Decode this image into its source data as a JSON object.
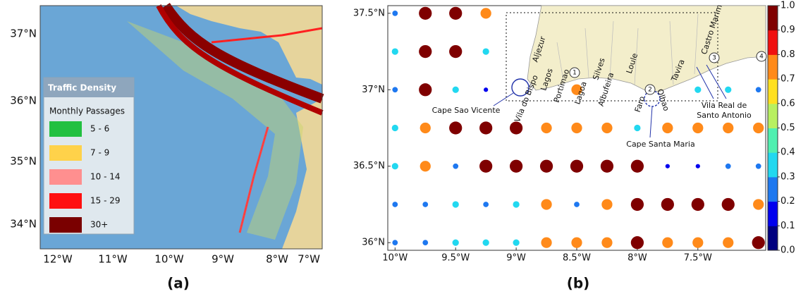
{
  "panel_a": {
    "label": "(a)",
    "yticks": [
      "37°N",
      "36°N",
      "35°N",
      "34°N"
    ],
    "xticks": [
      "12°W",
      "11°W",
      "10°W",
      "9°W",
      "8°W",
      "7°W"
    ],
    "legend": {
      "title": "Traffic Density",
      "subtitle": "Monthly Passages",
      "items": [
        {
          "label": "5 - 6",
          "color": "#22c040"
        },
        {
          "label": "7 - 9",
          "color": "#ffd24a"
        },
        {
          "label": "10 - 14",
          "color": "#ff8f8f"
        },
        {
          "label": "15 - 29",
          "color": "#ff1010"
        },
        {
          "label": "30+",
          "color": "#7a0000"
        }
      ]
    }
  },
  "chart_data": {
    "type": "scatter",
    "label": "(b)",
    "x": [
      -10,
      -9.75,
      -9.5,
      -9.25,
      -9,
      -8.75,
      -8.5,
      -8.25,
      -8,
      -7.75,
      -7.5,
      -7.25,
      -7
    ],
    "y": [
      37.5,
      37.25,
      37,
      36.75,
      36.5,
      36.25,
      36
    ],
    "values": [
      [
        0.25,
        0.95,
        0.95,
        0.75,
        null,
        null,
        null,
        null,
        null,
        null,
        null,
        null,
        null
      ],
      [
        0.35,
        0.95,
        0.95,
        0.35,
        null,
        null,
        null,
        null,
        null,
        null,
        null,
        null,
        null
      ],
      [
        0.25,
        0.95,
        0.35,
        0.15,
        null,
        null,
        0.75,
        null,
        null,
        null,
        0.35,
        0.35,
        0.25
      ],
      [
        0.35,
        0.75,
        0.95,
        0.95,
        0.95,
        0.75,
        0.75,
        0.75,
        0.35,
        0.75,
        0.75,
        0.75,
        0.75
      ],
      [
        0.35,
        0.75,
        0.25,
        0.95,
        0.95,
        0.95,
        0.95,
        0.95,
        0.95,
        0.15,
        0.15,
        0.25,
        0.25
      ],
      [
        0.25,
        0.25,
        0.35,
        0.25,
        0.35,
        0.75,
        0.25,
        0.75,
        0.95,
        0.95,
        0.95,
        0.95,
        0.75
      ],
      [
        0.25,
        0.25,
        0.35,
        0.35,
        0.35,
        0.75,
        0.75,
        0.75,
        0.95,
        0.75,
        0.75,
        0.75,
        0.95
      ]
    ],
    "xlim": [
      -10.06,
      -6.94
    ],
    "ylim": [
      35.95,
      37.55
    ],
    "xticks": [
      {
        "value": -10,
        "label": "10°W"
      },
      {
        "value": -9.5,
        "label": "9.5°W"
      },
      {
        "value": -9,
        "label": "9°W"
      },
      {
        "value": -8.5,
        "label": "8.5°W"
      },
      {
        "value": -8,
        "label": "8°W"
      },
      {
        "value": -7.5,
        "label": "7.5°W"
      }
    ],
    "yticks": [
      {
        "value": 36,
        "label": "36°N"
      },
      {
        "value": 36.5,
        "label": "36.5°N"
      },
      {
        "value": 37,
        "label": "37°N"
      },
      {
        "value": 37.5,
        "label": "37.5°N"
      }
    ],
    "colorbar": {
      "lim": [
        0,
        1
      ],
      "ticks": [
        {
          "value": 0,
          "label": "0.0"
        },
        0.1,
        0.2,
        0.3,
        0.4,
        0.5,
        0.6,
        0.7,
        0.8,
        0.9,
        {
          "value": 1,
          "label": "1.0"
        }
      ],
      "colors": [
        "#00007f",
        "#0000ee",
        "#1e78f0",
        "#22d8f0",
        "#50f0b0",
        "#b8f060",
        "#ffe020",
        "#ff8a1a",
        "#f01010",
        "#7f0000"
      ]
    },
    "annotations": [
      "Aljezur",
      "Vila do Bispo",
      "Lagos",
      "Portimao",
      "Lagoa",
      "Silves",
      "Albufeira",
      "Loule",
      "Faro",
      "Olhao",
      "Tavira",
      "Castro Marim",
      "Cape Sao Vicente",
      "Cape Santa Maria",
      "Vila Real de",
      "Santo Antonio",
      "1",
      "2",
      "3",
      "4"
    ]
  }
}
